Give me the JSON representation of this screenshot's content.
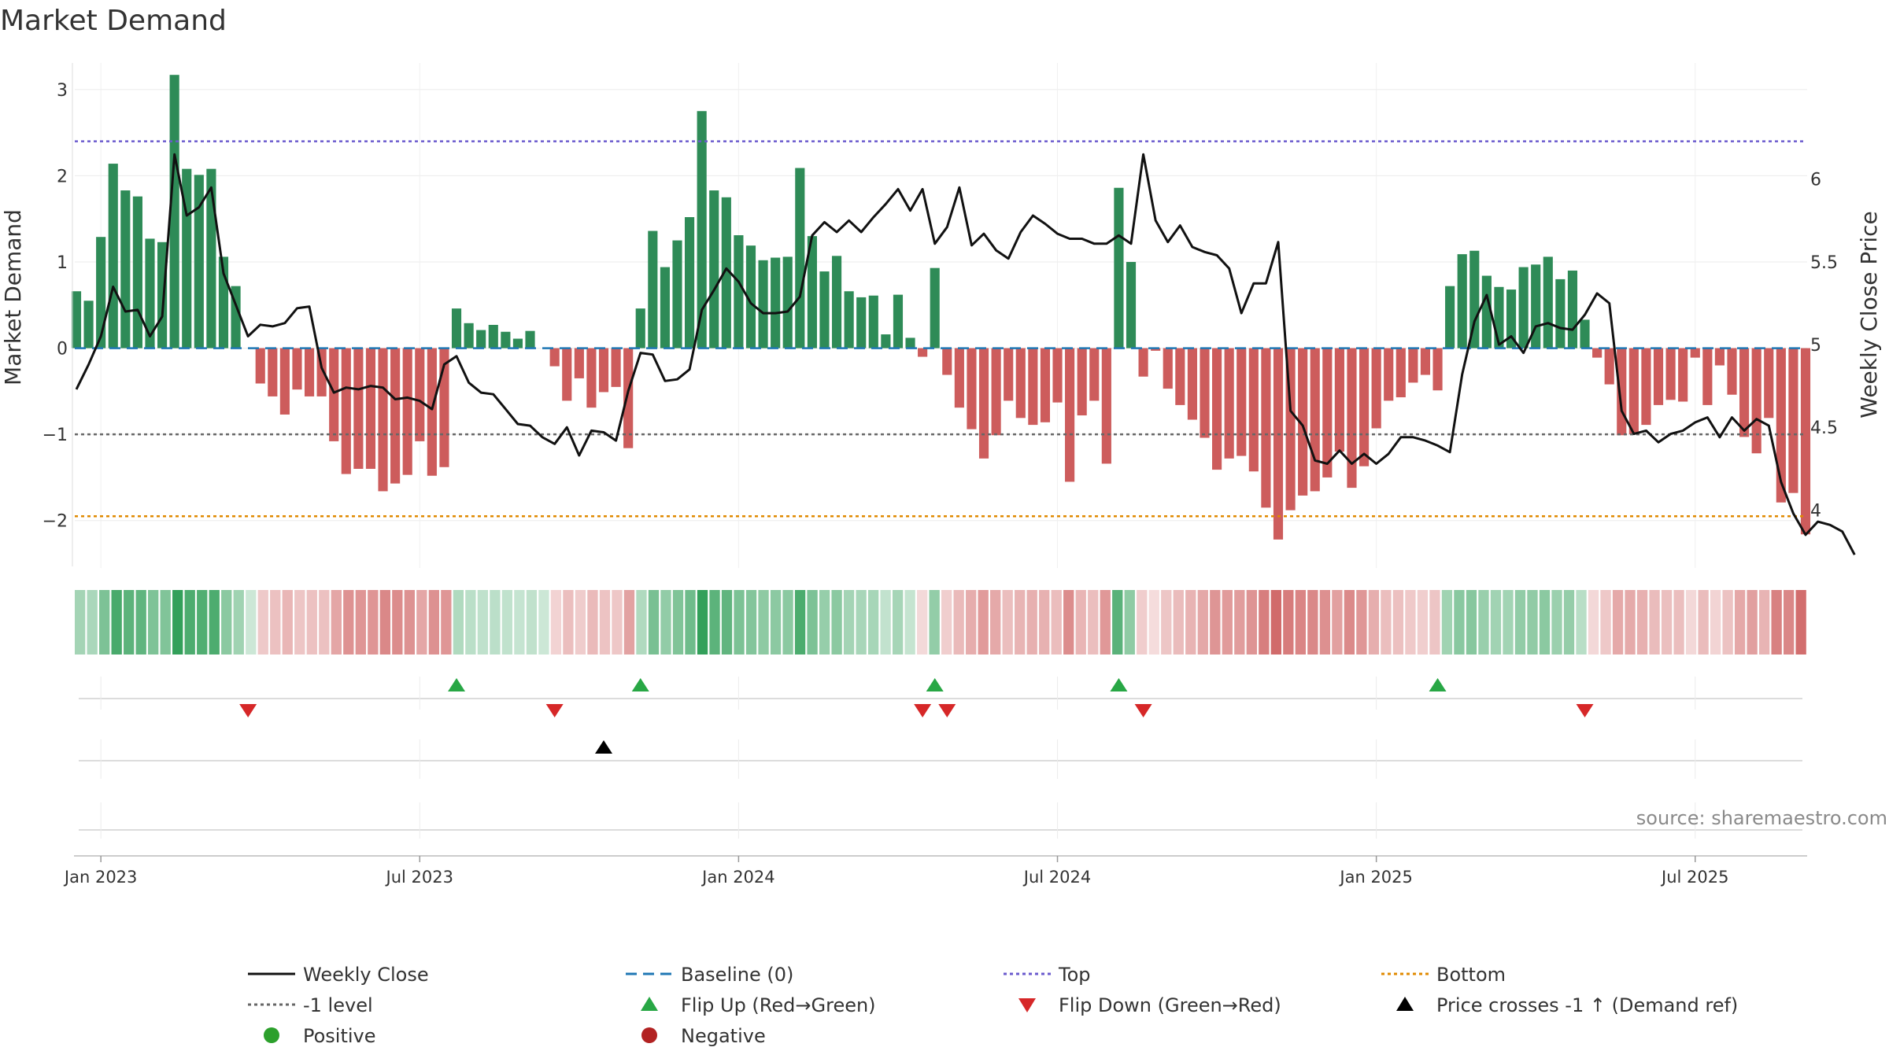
{
  "chart_data": {
    "type": "bar",
    "title": "Market Demand",
    "ylabel": "Market Demand",
    "y2label": "Weekly Close Price",
    "ylim": [
      -2.55,
      3.4
    ],
    "y2lim": [
      3.65,
      6.75
    ],
    "yticks": [
      3,
      2,
      1,
      0,
      -1,
      -2
    ],
    "yticks_labels": [
      "3",
      "2",
      "1",
      "0",
      "−1",
      "−2"
    ],
    "y2ticks": [
      6,
      5.5,
      5,
      4.5,
      4
    ],
    "y2ticks_labels": [
      "6",
      "5.5",
      "5",
      "4.5",
      "4"
    ],
    "xticks": [
      {
        "week": 2,
        "label": "Jan 2023"
      },
      {
        "week": 28,
        "label": "Jul 2023"
      },
      {
        "week": 54,
        "label": "Jan 2024"
      },
      {
        "week": 80,
        "label": "Jul 2024"
      },
      {
        "week": 106,
        "label": "Jan 2025"
      },
      {
        "week": 132,
        "label": "Jul 2025"
      }
    ],
    "levels": {
      "baseline": 0,
      "top": 2.4,
      "minus_one": -1,
      "bottom": -1.95
    },
    "demand": [
      0.66,
      0.55,
      1.29,
      2.14,
      1.83,
      1.76,
      1.27,
      1.23,
      3.17,
      2.08,
      2.01,
      2.08,
      1.06,
      0.72,
      0,
      -0.41,
      -0.56,
      -0.77,
      -0.48,
      -0.56,
      -0.56,
      -1.08,
      -1.46,
      -1.4,
      -1.4,
      -1.66,
      -1.57,
      -1.47,
      -1.08,
      -1.48,
      -1.38,
      0.46,
      0.29,
      0.21,
      0.27,
      0.19,
      0.11,
      0.2,
      0,
      -0.21,
      -0.61,
      -0.35,
      -0.69,
      -0.51,
      -0.45,
      -1.16,
      0.46,
      1.36,
      0.94,
      1.25,
      1.52,
      2.75,
      1.83,
      1.75,
      1.31,
      1.19,
      1.02,
      1.05,
      1.06,
      2.09,
      1.3,
      0.89,
      1.07,
      0.66,
      0.59,
      0.61,
      0.16,
      0.62,
      0.12,
      -0.1,
      0.93,
      -0.31,
      -0.69,
      -0.94,
      -1.28,
      -1.01,
      -0.61,
      -0.81,
      -0.89,
      -0.86,
      -0.63,
      -1.55,
      -0.78,
      -0.61,
      -1.34,
      1.86,
      1.0,
      -0.33,
      -0.03,
      -0.47,
      -0.66,
      -0.83,
      -1.04,
      -1.41,
      -1.28,
      -1.25,
      -1.43,
      -1.85,
      -2.22,
      -1.88,
      -1.71,
      -1.66,
      -1.5,
      -1.2,
      -1.62,
      -1.37,
      -0.93,
      -0.61,
      -0.57,
      -0.4,
      -0.31,
      -0.49,
      0.72,
      1.09,
      1.13,
      0.84,
      0.71,
      0.68,
      0.94,
      0.97,
      1.06,
      0.8,
      0.9,
      0.33,
      -0.11,
      -0.42,
      -1.01,
      -1.0,
      -0.89,
      -0.66,
      -0.6,
      -0.62,
      -0.11,
      -0.66,
      -0.2,
      -0.54,
      -1.03,
      -1.22,
      -0.81,
      -1.79,
      -1.68,
      -2.16
    ],
    "price": [
      4.73,
      4.88,
      5.05,
      5.35,
      5.2,
      5.21,
      5.05,
      5.17,
      6.15,
      5.78,
      5.83,
      5.95,
      5.43,
      5.24,
      5.05,
      5.12,
      5.11,
      5.13,
      5.22,
      5.23,
      4.86,
      4.71,
      4.74,
      4.73,
      4.75,
      4.74,
      4.67,
      4.68,
      4.66,
      4.61,
      4.88,
      4.93,
      4.77,
      4.71,
      4.7,
      4.61,
      4.52,
      4.51,
      4.44,
      4.4,
      4.5,
      4.33,
      4.48,
      4.47,
      4.42,
      4.72,
      4.95,
      4.94,
      4.78,
      4.79,
      4.85,
      5.21,
      5.33,
      5.46,
      5.38,
      5.25,
      5.19,
      5.19,
      5.2,
      5.29,
      5.66,
      5.74,
      5.68,
      5.75,
      5.68,
      5.77,
      5.85,
      5.94,
      5.81,
      5.94,
      5.61,
      5.71,
      5.95,
      5.6,
      5.67,
      5.57,
      5.52,
      5.68,
      5.78,
      5.73,
      5.67,
      5.64,
      5.64,
      5.61,
      5.61,
      5.66,
      5.61,
      6.15,
      5.75,
      5.62,
      5.72,
      5.59,
      5.56,
      5.54,
      5.46,
      5.19,
      5.37,
      5.37,
      5.62,
      4.6,
      4.51,
      4.3,
      4.28,
      4.36,
      4.28,
      4.34,
      4.28,
      4.34,
      4.44,
      4.44,
      4.42,
      4.39,
      4.35,
      4.82,
      5.14,
      5.3,
      5.0,
      5.05,
      4.95,
      5.11,
      5.13,
      5.1,
      5.09,
      5.18,
      5.31,
      5.25,
      4.6,
      4.46,
      4.48,
      4.41,
      4.46,
      4.48,
      4.53,
      4.56,
      4.44,
      4.56,
      4.48,
      4.55,
      4.51,
      4.17,
      3.98,
      3.85,
      3.93,
      3.91,
      3.87,
      3.73
    ],
    "flip_up_weeks": [
      31,
      46,
      70,
      85,
      111
    ],
    "flip_down_weeks": [
      14,
      39,
      69,
      71,
      87,
      123
    ],
    "price_cross_weeks": [
      43
    ],
    "legend": [
      {
        "label": "Weekly Close",
        "marker": "line",
        "color": "#111111"
      },
      {
        "label": "Baseline (0)",
        "marker": "dash",
        "color": "#1f77b4"
      },
      {
        "label": "Top",
        "marker": "dot",
        "color": "#6a5acd"
      },
      {
        "label": "Bottom",
        "marker": "dot",
        "color": "#e08a00"
      },
      {
        "label": "-1 level",
        "marker": "dot",
        "color": "#666666"
      },
      {
        "label": "Flip Up (Red→Green)",
        "marker": "tri-up",
        "color": "#28a745"
      },
      {
        "label": "Flip Down (Green→Red)",
        "marker": "tri-down",
        "color": "#d62728"
      },
      {
        "label": "Price crosses -1 ↑ (Demand ref)",
        "marker": "tri-up",
        "color": "#000000"
      },
      {
        "label": "Positive",
        "marker": "circle",
        "color": "#2ca02c"
      },
      {
        "label": "Negative",
        "marker": "circle",
        "color": "#b22222"
      }
    ],
    "source": "source: sharemaestro.com",
    "colors": {
      "positive_bar": "#2e8b57",
      "negative_bar": "#cd5c5c",
      "price_line": "#111111",
      "baseline": "#1f77b4",
      "top": "#6a5acd",
      "minus_one": "#666666",
      "bottom": "#e08a00",
      "flip_up": "#28a745",
      "flip_down": "#d62728",
      "cross": "#000000"
    }
  }
}
